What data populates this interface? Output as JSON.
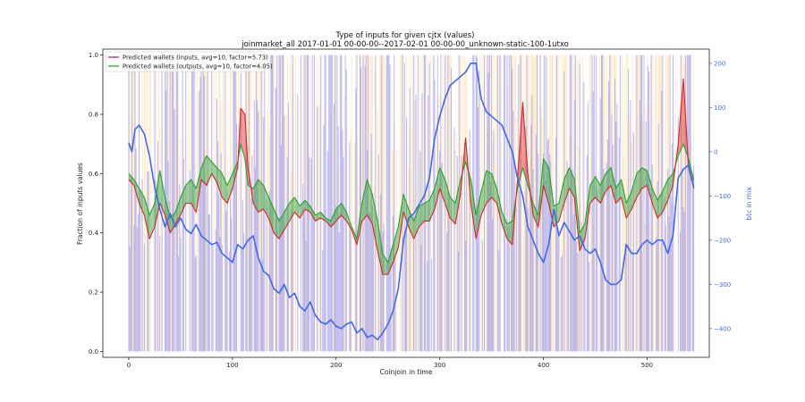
{
  "chart_data": {
    "type": "line",
    "title": "Type of inputs for given cjtx (values)",
    "subtitle": "joinmarket_all 2017-01-01 00-00-00--2017-02-01 00-00-00_unknown-static-100-1utxo",
    "xlabel": "Coinjoin in time",
    "ylabel": "Fraction of inputs values",
    "y2label": "btc in mix",
    "xlim": [
      -25,
      560
    ],
    "ylim": [
      -0.02,
      1.02
    ],
    "y2lim": [
      -465,
      232
    ],
    "xticks": [
      0,
      100,
      200,
      300,
      400,
      500
    ],
    "yticks": [
      0.0,
      0.2,
      0.4,
      0.6,
      0.8,
      1.0
    ],
    "y2ticks": [
      -400,
      -300,
      -200,
      -100,
      0,
      100,
      200
    ],
    "xtick_labels": [
      "0",
      "100",
      "200",
      "300",
      "400",
      "500"
    ],
    "ytick_labels": [
      "0.0",
      "0.2",
      "0.4",
      "0.6",
      "0.8",
      "1.0"
    ],
    "y2tick_labels": [
      "−400",
      "−300",
      "−200",
      "−100",
      "0",
      "100",
      "200"
    ],
    "legend_position": "top-left",
    "colors": {
      "inputs": "#d62728",
      "outputs": "#2ca02c",
      "btc_in_mix": "#4169e1",
      "bars_blue": "#7b7bf0",
      "bars_orange": "#ffd9a0",
      "secondary_axis": "#4169e1"
    },
    "series": [
      {
        "name": "Predicted wallets (inputs, avg=10, factor=5.73)",
        "axis": "left",
        "x": [
          0,
          5,
          10,
          15,
          20,
          25,
          30,
          35,
          40,
          45,
          50,
          55,
          60,
          65,
          70,
          75,
          80,
          85,
          90,
          95,
          100,
          105,
          108,
          112,
          115,
          120,
          125,
          130,
          135,
          140,
          145,
          150,
          155,
          160,
          165,
          170,
          175,
          180,
          185,
          190,
          195,
          200,
          205,
          210,
          215,
          220,
          225,
          230,
          235,
          240,
          245,
          250,
          255,
          260,
          265,
          270,
          275,
          280,
          285,
          290,
          295,
          300,
          305,
          310,
          315,
          320,
          325,
          330,
          335,
          340,
          345,
          350,
          355,
          360,
          365,
          370,
          375,
          380,
          385,
          390,
          395,
          400,
          405,
          410,
          415,
          420,
          425,
          430,
          435,
          440,
          445,
          450,
          455,
          460,
          465,
          470,
          475,
          480,
          485,
          490,
          495,
          500,
          505,
          510,
          515,
          520,
          525,
          530,
          535,
          540,
          545
        ],
        "values": [
          0.58,
          0.56,
          0.5,
          0.46,
          0.38,
          0.42,
          0.5,
          0.46,
          0.4,
          0.43,
          0.46,
          0.5,
          0.5,
          0.47,
          0.58,
          0.56,
          0.6,
          0.57,
          0.52,
          0.5,
          0.55,
          0.62,
          0.82,
          0.8,
          0.62,
          0.5,
          0.47,
          0.48,
          0.45,
          0.4,
          0.38,
          0.41,
          0.44,
          0.47,
          0.45,
          0.48,
          0.47,
          0.44,
          0.45,
          0.44,
          0.42,
          0.44,
          0.46,
          0.44,
          0.41,
          0.36,
          0.44,
          0.46,
          0.43,
          0.34,
          0.26,
          0.26,
          0.3,
          0.35,
          0.47,
          0.42,
          0.38,
          0.42,
          0.44,
          0.44,
          0.48,
          0.55,
          0.5,
          0.45,
          0.43,
          0.53,
          0.72,
          0.5,
          0.38,
          0.46,
          0.5,
          0.52,
          0.5,
          0.43,
          0.38,
          0.36,
          0.58,
          0.84,
          0.6,
          0.46,
          0.42,
          0.56,
          0.5,
          0.42,
          0.44,
          0.5,
          0.55,
          0.52,
          0.34,
          0.38,
          0.5,
          0.52,
          0.5,
          0.54,
          0.56,
          0.5,
          0.52,
          0.45,
          0.48,
          0.52,
          0.55,
          0.56,
          0.5,
          0.45,
          0.47,
          0.51,
          0.56,
          0.7,
          0.92,
          0.62,
          0.55
        ]
      },
      {
        "name": "Predicted wallets (outputs, avg=10, factor=4.05)",
        "axis": "left",
        "x": [
          0,
          5,
          10,
          15,
          20,
          25,
          30,
          35,
          40,
          45,
          50,
          55,
          60,
          65,
          70,
          75,
          80,
          85,
          90,
          95,
          100,
          105,
          108,
          112,
          115,
          120,
          125,
          130,
          135,
          140,
          145,
          150,
          155,
          160,
          165,
          170,
          175,
          180,
          185,
          190,
          195,
          200,
          205,
          210,
          215,
          220,
          225,
          230,
          235,
          240,
          245,
          250,
          255,
          260,
          265,
          270,
          275,
          280,
          285,
          290,
          295,
          300,
          305,
          310,
          315,
          320,
          325,
          330,
          335,
          340,
          345,
          350,
          355,
          360,
          365,
          370,
          375,
          380,
          385,
          390,
          395,
          400,
          405,
          410,
          415,
          420,
          425,
          430,
          435,
          440,
          445,
          450,
          455,
          460,
          465,
          470,
          475,
          480,
          485,
          490,
          495,
          500,
          505,
          510,
          515,
          520,
          525,
          530,
          535,
          540,
          545
        ],
        "values": [
          0.6,
          0.58,
          0.55,
          0.52,
          0.46,
          0.5,
          0.61,
          0.52,
          0.45,
          0.47,
          0.52,
          0.56,
          0.58,
          0.55,
          0.62,
          0.66,
          0.64,
          0.62,
          0.6,
          0.56,
          0.6,
          0.64,
          0.7,
          0.65,
          0.56,
          0.55,
          0.58,
          0.56,
          0.52,
          0.48,
          0.44,
          0.47,
          0.5,
          0.52,
          0.49,
          0.51,
          0.49,
          0.46,
          0.47,
          0.45,
          0.44,
          0.48,
          0.5,
          0.47,
          0.42,
          0.38,
          0.5,
          0.58,
          0.53,
          0.44,
          0.33,
          0.3,
          0.36,
          0.42,
          0.53,
          0.48,
          0.44,
          0.49,
          0.5,
          0.51,
          0.55,
          0.62,
          0.58,
          0.52,
          0.5,
          0.58,
          0.64,
          0.58,
          0.46,
          0.54,
          0.61,
          0.6,
          0.55,
          0.47,
          0.43,
          0.44,
          0.55,
          0.62,
          0.56,
          0.5,
          0.46,
          0.65,
          0.62,
          0.49,
          0.5,
          0.58,
          0.62,
          0.58,
          0.4,
          0.43,
          0.56,
          0.59,
          0.56,
          0.6,
          0.62,
          0.55,
          0.58,
          0.5,
          0.54,
          0.6,
          0.62,
          0.61,
          0.55,
          0.51,
          0.54,
          0.58,
          0.6,
          0.66,
          0.7,
          0.65,
          0.58
        ]
      },
      {
        "name": "btc in mix",
        "axis": "right",
        "x": [
          0,
          3,
          6,
          10,
          15,
          20,
          25,
          30,
          35,
          40,
          45,
          50,
          55,
          60,
          65,
          70,
          75,
          80,
          85,
          90,
          95,
          100,
          105,
          110,
          115,
          120,
          125,
          130,
          135,
          140,
          145,
          150,
          155,
          160,
          165,
          170,
          175,
          180,
          185,
          190,
          195,
          200,
          205,
          210,
          215,
          220,
          225,
          230,
          235,
          240,
          245,
          250,
          255,
          260,
          265,
          270,
          275,
          280,
          285,
          290,
          295,
          300,
          305,
          310,
          315,
          320,
          325,
          330,
          335,
          340,
          345,
          350,
          355,
          360,
          365,
          370,
          375,
          380,
          385,
          390,
          395,
          400,
          405,
          410,
          415,
          420,
          425,
          430,
          435,
          440,
          445,
          450,
          455,
          460,
          465,
          470,
          475,
          480,
          485,
          490,
          495,
          500,
          505,
          510,
          515,
          520,
          525,
          530,
          535,
          540,
          545
        ],
        "values": [
          20,
          0,
          50,
          60,
          40,
          -10,
          -80,
          -130,
          -170,
          -140,
          -170,
          -150,
          -175,
          -185,
          -165,
          -190,
          -200,
          -210,
          -205,
          -230,
          -240,
          -250,
          -210,
          -220,
          -200,
          -190,
          -240,
          -270,
          -280,
          -310,
          -320,
          -300,
          -330,
          -320,
          -350,
          -360,
          -340,
          -370,
          -385,
          -390,
          -380,
          -395,
          -400,
          -390,
          -385,
          -410,
          -400,
          -420,
          -415,
          -425,
          -410,
          -390,
          -360,
          -310,
          -200,
          -150,
          -140,
          -120,
          -100,
          -60,
          30,
          80,
          120,
          150,
          160,
          170,
          180,
          200,
          200,
          120,
          90,
          80,
          70,
          60,
          30,
          0,
          -60,
          -100,
          -170,
          -200,
          -230,
          -250,
          -210,
          -130,
          -190,
          -160,
          -180,
          -200,
          -190,
          -220,
          -230,
          -220,
          -250,
          -290,
          -300,
          -300,
          -290,
          -210,
          -230,
          -230,
          -210,
          -200,
          -210,
          -200,
          -200,
          -230,
          -190,
          -60,
          -40,
          -30,
          -80
        ]
      }
    ]
  }
}
